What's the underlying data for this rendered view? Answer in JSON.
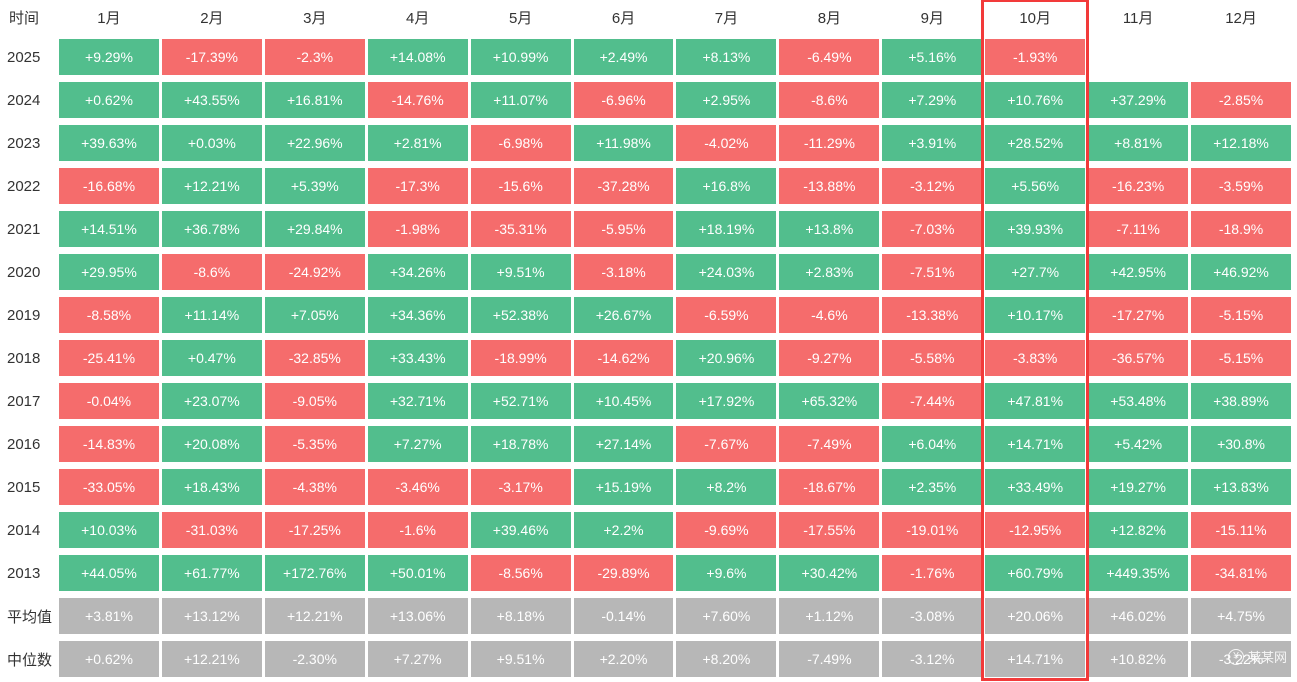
{
  "header": {
    "time_label": "时间",
    "months": [
      "1月",
      "2月",
      "3月",
      "4月",
      "5月",
      "6月",
      "7月",
      "8月",
      "9月",
      "10月",
      "11月",
      "12月"
    ],
    "selected_month": "10月",
    "selected_month_index": 9
  },
  "rows": [
    {
      "label": "2025",
      "type": "data",
      "cells": [
        "+9.29%",
        "-17.39%",
        "-2.3%",
        "+14.08%",
        "+10.99%",
        "+2.49%",
        "+8.13%",
        "-6.49%",
        "+5.16%",
        "-1.93%",
        "",
        ""
      ]
    },
    {
      "label": "2024",
      "type": "data",
      "cells": [
        "+0.62%",
        "+43.55%",
        "+16.81%",
        "-14.76%",
        "+11.07%",
        "-6.96%",
        "+2.95%",
        "-8.6%",
        "+7.29%",
        "+10.76%",
        "+37.29%",
        "-2.85%"
      ]
    },
    {
      "label": "2023",
      "type": "data",
      "cells": [
        "+39.63%",
        "+0.03%",
        "+22.96%",
        "+2.81%",
        "-6.98%",
        "+11.98%",
        "-4.02%",
        "-11.29%",
        "+3.91%",
        "+28.52%",
        "+8.81%",
        "+12.18%"
      ]
    },
    {
      "label": "2022",
      "type": "data",
      "cells": [
        "-16.68%",
        "+12.21%",
        "+5.39%",
        "-17.3%",
        "-15.6%",
        "-37.28%",
        "+16.8%",
        "-13.88%",
        "-3.12%",
        "+5.56%",
        "-16.23%",
        "-3.59%"
      ]
    },
    {
      "label": "2021",
      "type": "data",
      "cells": [
        "+14.51%",
        "+36.78%",
        "+29.84%",
        "-1.98%",
        "-35.31%",
        "-5.95%",
        "+18.19%",
        "+13.8%",
        "-7.03%",
        "+39.93%",
        "-7.11%",
        "-18.9%"
      ]
    },
    {
      "label": "2020",
      "type": "data",
      "cells": [
        "+29.95%",
        "-8.6%",
        "-24.92%",
        "+34.26%",
        "+9.51%",
        "-3.18%",
        "+24.03%",
        "+2.83%",
        "-7.51%",
        "+27.7%",
        "+42.95%",
        "+46.92%"
      ]
    },
    {
      "label": "2019",
      "type": "data",
      "cells": [
        "-8.58%",
        "+11.14%",
        "+7.05%",
        "+34.36%",
        "+52.38%",
        "+26.67%",
        "-6.59%",
        "-4.6%",
        "-13.38%",
        "+10.17%",
        "-17.27%",
        "-5.15%"
      ]
    },
    {
      "label": "2018",
      "type": "data",
      "cells": [
        "-25.41%",
        "+0.47%",
        "-32.85%",
        "+33.43%",
        "-18.99%",
        "-14.62%",
        "+20.96%",
        "-9.27%",
        "-5.58%",
        "-3.83%",
        "-36.57%",
        "-5.15%"
      ]
    },
    {
      "label": "2017",
      "type": "data",
      "cells": [
        "-0.04%",
        "+23.07%",
        "-9.05%",
        "+32.71%",
        "+52.71%",
        "+10.45%",
        "+17.92%",
        "+65.32%",
        "-7.44%",
        "+47.81%",
        "+53.48%",
        "+38.89%"
      ]
    },
    {
      "label": "2016",
      "type": "data",
      "cells": [
        "-14.83%",
        "+20.08%",
        "-5.35%",
        "+7.27%",
        "+18.78%",
        "+27.14%",
        "-7.67%",
        "-7.49%",
        "+6.04%",
        "+14.71%",
        "+5.42%",
        "+30.8%"
      ]
    },
    {
      "label": "2015",
      "type": "data",
      "cells": [
        "-33.05%",
        "+18.43%",
        "-4.38%",
        "-3.46%",
        "-3.17%",
        "+15.19%",
        "+8.2%",
        "-18.67%",
        "+2.35%",
        "+33.49%",
        "+19.27%",
        "+13.83%"
      ]
    },
    {
      "label": "2014",
      "type": "data",
      "cells": [
        "+10.03%",
        "-31.03%",
        "-17.25%",
        "-1.6%",
        "+39.46%",
        "+2.2%",
        "-9.69%",
        "-17.55%",
        "-19.01%",
        "-12.95%",
        "+12.82%",
        "-15.11%"
      ]
    },
    {
      "label": "2013",
      "type": "data",
      "cells": [
        "+44.05%",
        "+61.77%",
        "+172.76%",
        "+50.01%",
        "-8.56%",
        "-29.89%",
        "+9.6%",
        "+30.42%",
        "-1.76%",
        "+60.79%",
        "+449.35%",
        "-34.81%"
      ]
    },
    {
      "label": "平均值",
      "type": "summary",
      "cells": [
        "+3.81%",
        "+13.12%",
        "+12.21%",
        "+13.06%",
        "+8.18%",
        "-0.14%",
        "+7.60%",
        "+1.12%",
        "-3.08%",
        "+20.06%",
        "+46.02%",
        "+4.75%"
      ]
    },
    {
      "label": "中位数",
      "type": "summary",
      "cells": [
        "+0.62%",
        "+12.21%",
        "-2.30%",
        "+7.27%",
        "+9.51%",
        "+2.20%",
        "+8.20%",
        "-7.49%",
        "-3.12%",
        "+14.71%",
        "+10.82%",
        "-3.22%"
      ]
    }
  ],
  "colors": {
    "positive": "#52BE8D",
    "negative": "#F56C6C",
    "summary": "#B7B7B7",
    "highlight": "#F23A3A"
  },
  "watermark": {
    "icon": "¥",
    "text": "某某网"
  },
  "chart_data": {
    "type": "heatmap",
    "title": "",
    "unit": "%",
    "x_categories": [
      "1月",
      "2月",
      "3月",
      "4月",
      "5月",
      "6月",
      "7月",
      "8月",
      "9月",
      "10月",
      "11月",
      "12月"
    ],
    "y_categories": [
      "2025",
      "2024",
      "2023",
      "2022",
      "2021",
      "2020",
      "2019",
      "2018",
      "2017",
      "2016",
      "2015",
      "2014",
      "2013",
      "平均值",
      "中位数"
    ],
    "highlighted_column": "10月",
    "values": [
      [
        9.29,
        -17.39,
        -2.3,
        14.08,
        10.99,
        2.49,
        8.13,
        -6.49,
        5.16,
        -1.93,
        null,
        null
      ],
      [
        0.62,
        43.55,
        16.81,
        -14.76,
        11.07,
        -6.96,
        2.95,
        -8.6,
        7.29,
        10.76,
        37.29,
        -2.85
      ],
      [
        39.63,
        0.03,
        22.96,
        2.81,
        -6.98,
        11.98,
        -4.02,
        -11.29,
        3.91,
        28.52,
        8.81,
        12.18
      ],
      [
        -16.68,
        12.21,
        5.39,
        -17.3,
        -15.6,
        -37.28,
        16.8,
        -13.88,
        -3.12,
        5.56,
        -16.23,
        -3.59
      ],
      [
        14.51,
        36.78,
        29.84,
        -1.98,
        -35.31,
        -5.95,
        18.19,
        13.8,
        -7.03,
        39.93,
        -7.11,
        -18.9
      ],
      [
        29.95,
        -8.6,
        -24.92,
        34.26,
        9.51,
        -3.18,
        24.03,
        2.83,
        -7.51,
        27.7,
        42.95,
        46.92
      ],
      [
        -8.58,
        11.14,
        7.05,
        34.36,
        52.38,
        26.67,
        -6.59,
        -4.6,
        -13.38,
        10.17,
        -17.27,
        -5.15
      ],
      [
        -25.41,
        0.47,
        -32.85,
        33.43,
        -18.99,
        -14.62,
        20.96,
        -9.27,
        -5.58,
        -3.83,
        -36.57,
        -5.15
      ],
      [
        -0.04,
        23.07,
        -9.05,
        32.71,
        52.71,
        10.45,
        17.92,
        65.32,
        -7.44,
        47.81,
        53.48,
        38.89
      ],
      [
        -14.83,
        20.08,
        -5.35,
        7.27,
        18.78,
        27.14,
        -7.67,
        -7.49,
        6.04,
        14.71,
        5.42,
        30.8
      ],
      [
        -33.05,
        18.43,
        -4.38,
        -3.46,
        -3.17,
        15.19,
        8.2,
        -18.67,
        2.35,
        33.49,
        19.27,
        13.83
      ],
      [
        10.03,
        -31.03,
        -17.25,
        -1.6,
        39.46,
        2.2,
        -9.69,
        -17.55,
        -19.01,
        -12.95,
        12.82,
        -15.11
      ],
      [
        44.05,
        61.77,
        172.76,
        50.01,
        -8.56,
        -29.89,
        9.6,
        30.42,
        -1.76,
        60.79,
        449.35,
        -34.81
      ],
      [
        3.81,
        13.12,
        12.21,
        13.06,
        8.18,
        -0.14,
        7.6,
        1.12,
        -3.08,
        20.06,
        46.02,
        4.75
      ],
      [
        0.62,
        12.21,
        -2.3,
        7.27,
        9.51,
        2.2,
        8.2,
        -7.49,
        -3.12,
        14.71,
        10.82,
        -3.22
      ]
    ]
  }
}
